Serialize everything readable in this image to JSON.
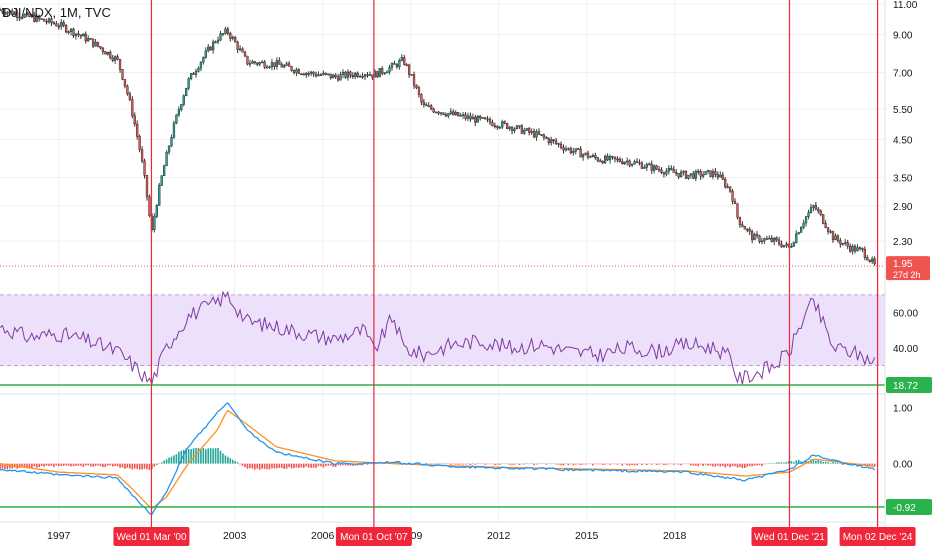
{
  "header": {
    "symbol_label": "DJI/NDX, 1M, TVC"
  },
  "colors": {
    "up": "#26a69a",
    "down": "#ef5350",
    "candle_body": "#26302c",
    "rsi_line": "#7e3a9f",
    "rsi_band": "#ede0fb",
    "macd": "#2196f3",
    "signal": "#ff8f1f",
    "vline": "#f0263a",
    "hline": "#2bb24c",
    "last_badge": "#ef5350",
    "green_badge": "#2bb24c",
    "grid": "#eef0f3"
  },
  "price_axis": {
    "ticks": [
      "11.00",
      "9.00",
      "7.00",
      "5.50",
      "4.50",
      "3.50",
      "2.90",
      "2.30"
    ],
    "last_value": "1.95",
    "countdown": "27d 2h"
  },
  "rsi_axis": {
    "ticks": [
      "60.00",
      "40.00"
    ],
    "level_badge": "18.72"
  },
  "macd_axis": {
    "ticks": [
      "1.00",
      "0.00"
    ],
    "level_badge": "-0.92"
  },
  "time_axis": {
    "years": [
      "1997",
      "2003",
      "2006",
      "2009",
      "2012",
      "2015",
      "2018"
    ]
  },
  "markers": [
    {
      "label": "Wed 01 Mar '00",
      "date": "2000-03-01"
    },
    {
      "label": "Mon 01 Oct '07",
      "date": "2007-10-01"
    },
    {
      "label": "Wed 01 Dec '21",
      "date": "2021-12-01"
    },
    {
      "label": "Mon 02 Dec '24",
      "date": "2024-12-02"
    }
  ],
  "chart_data": [
    {
      "type": "candlestick",
      "title": "DJI/NDX, 1M, TVC",
      "y_scale": "log",
      "ylim": [
        1.9,
        11.3
      ],
      "x": [
        "1995-01",
        "1996-01",
        "1997-01",
        "1998-01",
        "1999-01",
        "1999-06",
        "2000-03",
        "2000-09",
        "2001-06",
        "2002-06",
        "2002-10",
        "2003-06",
        "2004-06",
        "2005-06",
        "2006-06",
        "2007-06",
        "2007-10",
        "2008-06",
        "2008-10",
        "2009-06",
        "2010-06",
        "2011-06",
        "2012-06",
        "2013-06",
        "2014-06",
        "2015-06",
        "2016-06",
        "2017-06",
        "2018-06",
        "2019-06",
        "2019-12",
        "2020-03",
        "2020-09",
        "2021-06",
        "2021-12",
        "2022-06",
        "2022-10",
        "2023-06",
        "2024-01",
        "2024-06",
        "2024-11"
      ],
      "close": [
        10.6,
        10.1,
        9.6,
        8.7,
        7.6,
        5.8,
        2.4,
        4.0,
        6.6,
        8.8,
        9.2,
        7.5,
        7.4,
        7.0,
        6.8,
        7.0,
        6.9,
        7.3,
        7.6,
        5.6,
        5.3,
        5.1,
        4.9,
        4.6,
        4.2,
        3.95,
        3.9,
        3.7,
        3.55,
        3.6,
        3.2,
        2.65,
        2.35,
        2.3,
        2.2,
        2.65,
        2.9,
        2.35,
        2.2,
        2.15,
        1.95
      ]
    },
    {
      "type": "line",
      "name": "RSI",
      "ylim": [
        15,
        75
      ],
      "x": [
        "1995-01",
        "1996-01",
        "1997-01",
        "1998-01",
        "1999-01",
        "1999-06",
        "2000-03",
        "2000-09",
        "2001-06",
        "2002-06",
        "2002-10",
        "2003-06",
        "2004-06",
        "2005-06",
        "2006-06",
        "2007-06",
        "2007-10",
        "2008-06",
        "2008-10",
        "2009-06",
        "2010-06",
        "2011-06",
        "2012-06",
        "2013-06",
        "2014-06",
        "2015-06",
        "2016-06",
        "2017-06",
        "2018-06",
        "2019-06",
        "2019-12",
        "2020-03",
        "2020-09",
        "2021-06",
        "2021-12",
        "2022-06",
        "2022-10",
        "2023-06",
        "2024-01",
        "2024-06",
        "2024-11"
      ],
      "values": [
        52,
        46,
        48,
        44,
        38,
        32,
        20,
        40,
        58,
        66,
        70,
        55,
        52,
        48,
        45,
        50,
        38,
        58,
        40,
        36,
        42,
        44,
        40,
        42,
        38,
        36,
        40,
        38,
        42,
        40,
        34,
        22,
        25,
        30,
        38,
        58,
        66,
        40,
        38,
        35,
        32
      ],
      "bands": [
        30,
        70
      ]
    },
    {
      "type": "line",
      "name": "MACD",
      "ylim": [
        -1.0,
        1.2
      ],
      "x": [
        "1995-01",
        "1997-01",
        "1999-01",
        "1999-06",
        "2000-03",
        "2000-09",
        "2001-06",
        "2002-06",
        "2002-10",
        "2003-06",
        "2004-06",
        "2006-06",
        "2008-06",
        "2010-06",
        "2012-06",
        "2015-06",
        "2018-06",
        "2020-06",
        "2021-12",
        "2022-10",
        "2023-06",
        "2024-11"
      ],
      "series": [
        {
          "values": [
            -0.1,
            -0.2,
            -0.25,
            -0.5,
            -0.92,
            -0.5,
            0.3,
            0.9,
            1.1,
            0.6,
            0.2,
            0.0,
            0.02,
            -0.05,
            -0.08,
            -0.12,
            -0.15,
            -0.3,
            -0.1,
            0.15,
            0.05,
            -0.1
          ]
        },
        {
          "values": [
            0.0,
            -0.15,
            -0.2,
            -0.4,
            -0.8,
            -0.6,
            0.0,
            0.6,
            0.95,
            0.7,
            0.3,
            0.05,
            0.0,
            -0.04,
            -0.07,
            -0.1,
            -0.13,
            -0.22,
            -0.15,
            0.08,
            0.04,
            -0.05
          ]
        }
      ]
    }
  ]
}
